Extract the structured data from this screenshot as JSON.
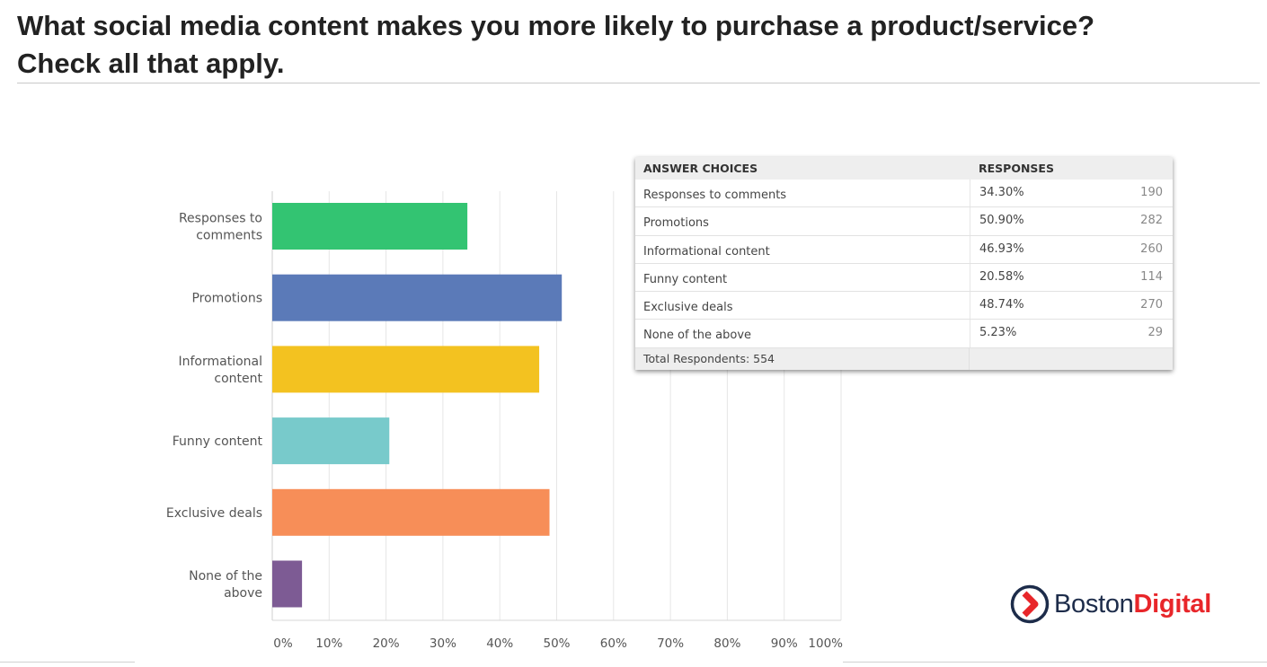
{
  "page": {
    "title_line1": "What social media content makes you more likely to purchase a product/service?",
    "title_line2": "Check all that apply."
  },
  "chart_data": {
    "type": "bar",
    "orientation": "horizontal",
    "categories": [
      [
        "Responses to",
        "comments"
      ],
      [
        "Promotions"
      ],
      [
        "Informational",
        "content"
      ],
      [
        "Funny content"
      ],
      [
        "Exclusive deals"
      ],
      [
        "None of the",
        "above"
      ]
    ],
    "values": [
      34.3,
      50.9,
      46.93,
      20.58,
      48.74,
      5.23
    ],
    "colors": [
      "#33c472",
      "#5b7ab8",
      "#f3c220",
      "#78cacb",
      "#f78e58",
      "#7d5b94"
    ],
    "xlim": [
      0,
      100
    ],
    "xticks": [
      "0%",
      "10%",
      "20%",
      "30%",
      "40%",
      "50%",
      "60%",
      "70%",
      "80%",
      "90%",
      "100%"
    ],
    "grid": "vertical"
  },
  "table": {
    "headers": {
      "choice": "ANSWER CHOICES",
      "responses": "RESPONSES"
    },
    "rows": [
      {
        "choice": "Responses to comments",
        "pct": "34.30%",
        "count": "190"
      },
      {
        "choice": "Promotions",
        "pct": "50.90%",
        "count": "282"
      },
      {
        "choice": "Informational content",
        "pct": "46.93%",
        "count": "260"
      },
      {
        "choice": "Funny content",
        "pct": "20.58%",
        "count": "114"
      },
      {
        "choice": "Exclusive deals",
        "pct": "48.74%",
        "count": "270"
      },
      {
        "choice": "None of the above",
        "pct": "5.23%",
        "count": "29"
      }
    ],
    "footer": "Total Respondents: 554"
  },
  "logo": {
    "word1": "Boston",
    "word2": "Digital",
    "icon": "chevron-right-circle-icon"
  }
}
